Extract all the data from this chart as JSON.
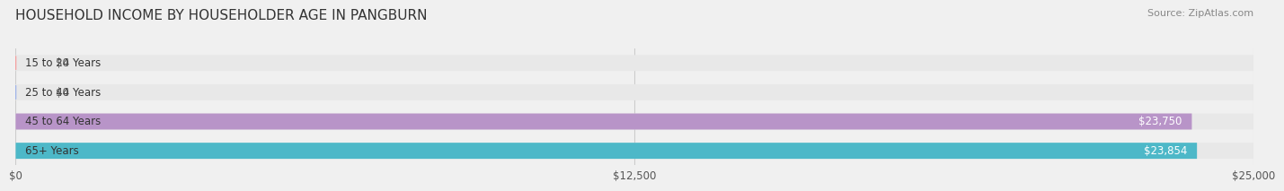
{
  "title": "HOUSEHOLD INCOME BY HOUSEHOLDER AGE IN PANGBURN",
  "source": "Source: ZipAtlas.com",
  "categories": [
    "15 to 24 Years",
    "25 to 44 Years",
    "45 to 64 Years",
    "65+ Years"
  ],
  "values": [
    0,
    0,
    23750,
    23854
  ],
  "bar_colors": [
    "#f4a0a0",
    "#a0b4e8",
    "#b894c8",
    "#4db8c8"
  ],
  "label_colors": [
    "#888888",
    "#888888",
    "#ffffff",
    "#ffffff"
  ],
  "value_labels": [
    "$0",
    "$0",
    "$23,750",
    "$23,854"
  ],
  "xlim": [
    0,
    25000
  ],
  "xticks": [
    0,
    12500,
    25000
  ],
  "xtick_labels": [
    "$0",
    "$12,500",
    "$25,000"
  ],
  "background_color": "#f0f0f0",
  "bar_background_color": "#e8e8e8",
  "title_fontsize": 11,
  "source_fontsize": 8,
  "bar_height": 0.55,
  "bar_label_fontsize": 8.5,
  "tick_fontsize": 8.5
}
